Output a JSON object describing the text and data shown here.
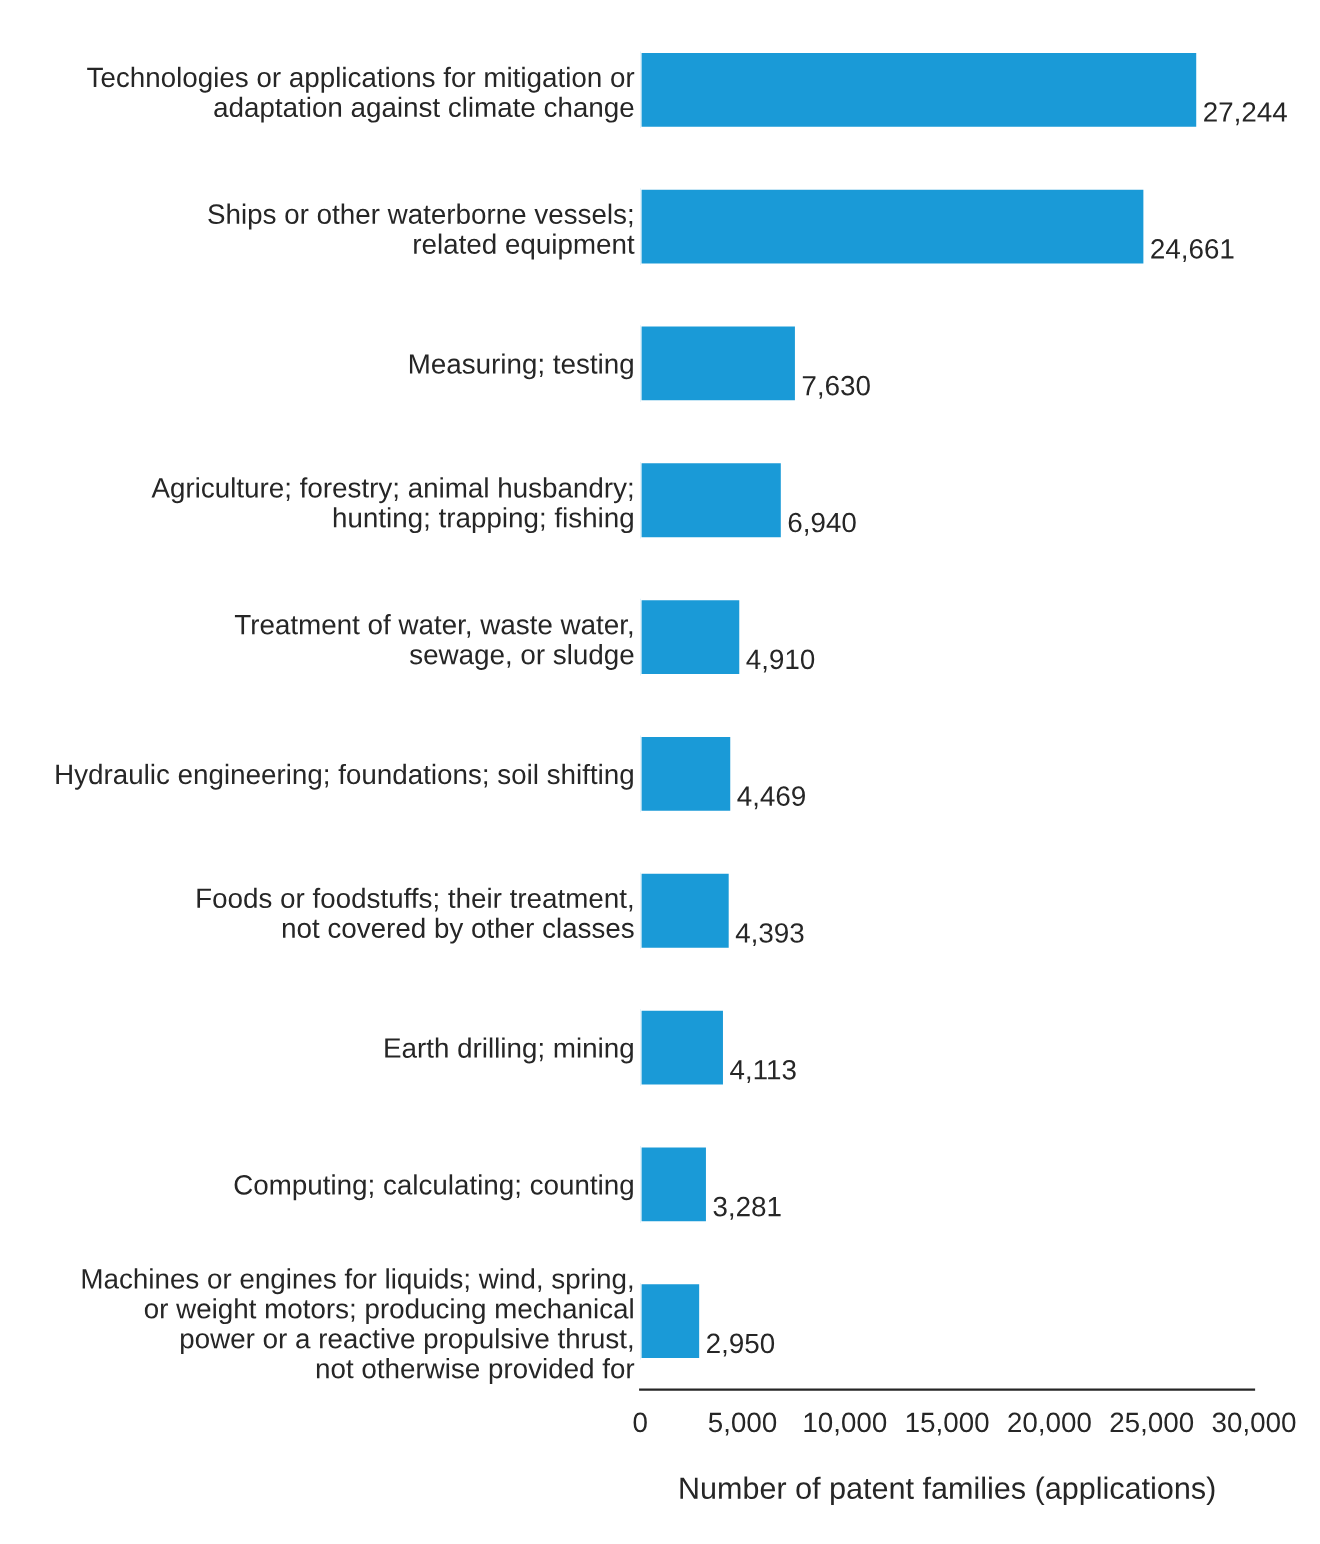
{
  "chart_data": {
    "type": "bar",
    "orientation": "horizontal",
    "xlabel": "Number of patent families (applications)",
    "categories": [
      "Technologies or applications for mitigation or\nadaptation against climate change",
      "Ships or other waterborne vessels;\nrelated equipment",
      "Measuring; testing",
      "Agriculture; forestry; animal husbandry;\nhunting; trapping; fishing",
      "Treatment of water, waste water,\nsewage, or sludge",
      "Hydraulic engineering; foundations; soil shifting",
      "Foods or foodstuffs; their treatment,\nnot covered by other classes",
      "Earth drilling; mining",
      "Computing; calculating; counting",
      "Machines or engines for liquids; wind, spring,\nor weight motors; producing mechanical\npower or a reactive propulsive thrust,\nnot otherwise provided for"
    ],
    "values": [
      27244,
      24661,
      7630,
      6940,
      4910,
      4469,
      4393,
      4113,
      3281,
      2950
    ],
    "value_labels": [
      "27,244",
      "24,661",
      "7,630",
      "6,940",
      "4,910",
      "4,469",
      "4,393",
      "4,113",
      "3,281",
      "2,950"
    ],
    "color": "#1a9ad7",
    "grid": false,
    "legend": false,
    "xlim": [
      0,
      30000
    ],
    "xticks": [
      {
        "value": 0,
        "label": "0"
      },
      {
        "value": 5000,
        "label": "5,000"
      },
      {
        "value": 10000,
        "label": "10,000"
      },
      {
        "value": 15000,
        "label": "15,000"
      },
      {
        "value": 20000,
        "label": "20,000"
      },
      {
        "value": 25000,
        "label": "25,000"
      },
      {
        "value": 30000,
        "label": "30,000"
      }
    ]
  }
}
